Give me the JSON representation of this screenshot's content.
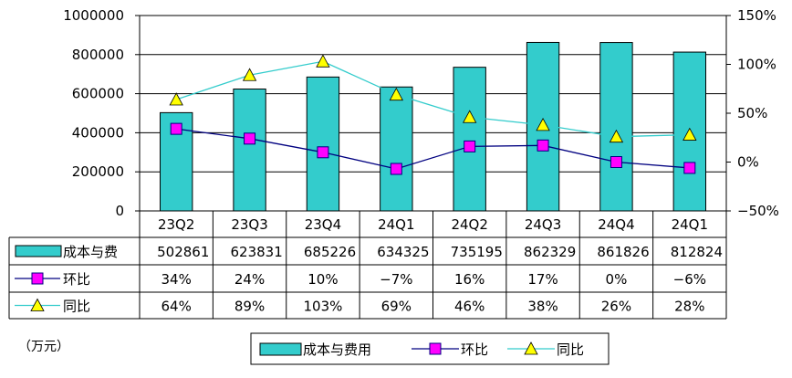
{
  "chart_data": {
    "type": "bar",
    "categories": [
      "23Q2",
      "23Q3",
      "23Q4",
      "24Q1",
      "24Q2",
      "24Q3",
      "24Q4",
      "24Q1"
    ],
    "series": [
      {
        "name": "成本与费用",
        "kind": "bar",
        "axis": "left",
        "color": "#33CCCC",
        "values": [
          502861,
          623831,
          685226,
          634325,
          735195,
          862329,
          861826,
          812824
        ],
        "labels": [
          "502861",
          "623831",
          "685226",
          "634325",
          "735195",
          "862329",
          "861826",
          "812824"
        ]
      },
      {
        "name": "环比",
        "kind": "line",
        "axis": "right",
        "color": "#000080",
        "marker": "square",
        "marker_color": "#FF00FF",
        "values": [
          34,
          24,
          10,
          -7,
          16,
          17,
          0,
          -6
        ],
        "labels": [
          "34%",
          "24%",
          "10%",
          "−7%",
          "16%",
          "17%",
          "0%",
          "−6%"
        ]
      },
      {
        "name": "同比",
        "kind": "line",
        "axis": "right",
        "color": "#33CCCC",
        "marker": "triangle",
        "marker_color": "#FFFF00",
        "values": [
          64,
          89,
          103,
          69,
          46,
          38,
          26,
          28
        ],
        "labels": [
          "64%",
          "89%",
          "103%",
          "69%",
          "46%",
          "38%",
          "26%",
          "28%"
        ]
      }
    ],
    "table_labels": [
      "成本与费",
      "环比",
      "同比"
    ],
    "legend_labels": [
      "成本与费用",
      "环比",
      "同比"
    ],
    "y_left": {
      "min": 0,
      "max": 1000000,
      "ticks": [
        "0",
        "200000",
        "400000",
        "600000",
        "800000",
        "1000000"
      ]
    },
    "y_right": {
      "min": -50,
      "max": 150,
      "ticks": [
        "−50%",
        "0%",
        "50%",
        "100%",
        "150%"
      ]
    },
    "unit": "（万元）",
    "grid": true,
    "legend_position": "bottom"
  }
}
